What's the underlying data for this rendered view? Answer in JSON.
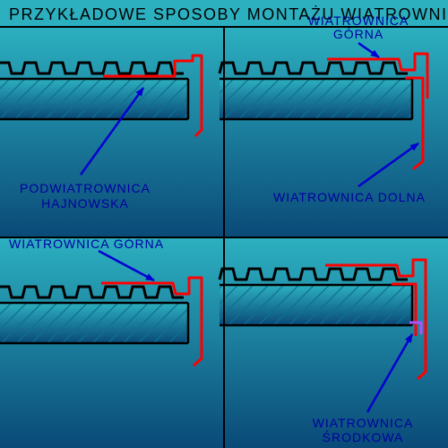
{
  "title": "PRZYKŁADOWE SPOSOBY MONTAŻU WIATROWNIC",
  "colors": {
    "background": "#2cb0c0",
    "grid_divider": "#000000",
    "panel_gradient_top": "#2cb0c0",
    "panel_gradient_bottom": "#0a4a78",
    "roof_line": "#000000",
    "roof_hatch": "#0d7090",
    "flashing": "#ff0000",
    "arrow": "#0000d0",
    "label_text": "#0000a0",
    "accent_purple": "#b050ff"
  },
  "stroke_widths": {
    "roof": 3,
    "flashing": 3,
    "arrow": 2.5,
    "divider": 2
  },
  "panels": {
    "top_left": {
      "label1": "PODWIATROWNICA",
      "label2": "HAJNOWSKA"
    },
    "top_right": {
      "label1": "WIATROWNICA",
      "label2": "GÓRNA",
      "label3": "WIATROWNICA DOLNA"
    },
    "bottom_left": {
      "label1": "WIATROWNICA GÓRNA"
    },
    "bottom_right": {
      "label1": "WIATROWNICA",
      "label2": "ŚRODKOWA"
    }
  },
  "diagram_type": "infographic",
  "layout": {
    "cols": 2,
    "rows": 2,
    "title_height": 30
  }
}
